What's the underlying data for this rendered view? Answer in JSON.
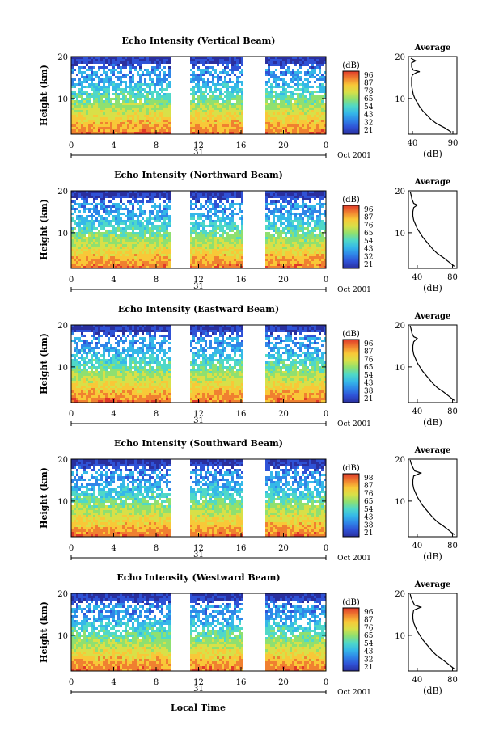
{
  "figure": {
    "bottom_label": "Local Time"
  },
  "colorbar": {
    "unit": "(dB)",
    "colors": [
      "#2a2f9e",
      "#2f52d6",
      "#2f86e8",
      "#35b8e8",
      "#4fd8c8",
      "#8fe070",
      "#d8e048",
      "#f8c838",
      "#f08030",
      "#e03a2a"
    ]
  },
  "chart_data": [
    {
      "type": "heatmap",
      "title": "Echo Intensity (Vertical Beam)",
      "ylabel": "Height (km)",
      "y_ticks": [
        "20",
        "10"
      ],
      "ylim": [
        1.5,
        20
      ],
      "x_ticks": [
        "0",
        "4",
        "8",
        "12",
        "16",
        "20",
        "0"
      ],
      "xlim": [
        0,
        24
      ],
      "date_label": "31",
      "month_year": "Oct 2001",
      "colorbar_ticks": [
        "96",
        "87",
        "78",
        "65",
        "54",
        "43",
        "32",
        "21"
      ],
      "data_gaps": [
        [
          9.3,
          11.2
        ],
        [
          16.2,
          18.2
        ]
      ],
      "profile": {
        "title": "Average",
        "xlabel": "(dB)",
        "x_ticks": [
          "40",
          "90"
        ],
        "xlim": [
          35,
          95
        ],
        "y_ticks": [
          "20",
          "10"
        ],
        "ylim": [
          1.5,
          20
        ],
        "points": [
          [
            88,
            2
          ],
          [
            80,
            3
          ],
          [
            70,
            4
          ],
          [
            63,
            5
          ],
          [
            58,
            6
          ],
          [
            53,
            7
          ],
          [
            49,
            8
          ],
          [
            46,
            9
          ],
          [
            43,
            10
          ],
          [
            41,
            11
          ],
          [
            40,
            12
          ],
          [
            39,
            13
          ],
          [
            39,
            14
          ],
          [
            39,
            15
          ],
          [
            40,
            15.6
          ],
          [
            45,
            16.2
          ],
          [
            49,
            16.4
          ],
          [
            41,
            16.8
          ],
          [
            39,
            17.5
          ],
          [
            39,
            18.5
          ],
          [
            44,
            19
          ],
          [
            38,
            19.6
          ]
        ]
      }
    },
    {
      "type": "heatmap",
      "title": "Echo Intensity (Northward Beam)",
      "ylabel": "Height (km)",
      "y_ticks": [
        "20",
        "10"
      ],
      "ylim": [
        1.5,
        20
      ],
      "x_ticks": [
        "0",
        "4",
        "8",
        "12",
        "16",
        "20",
        "0"
      ],
      "xlim": [
        0,
        24
      ],
      "date_label": "31",
      "month_year": "Oct 2001",
      "colorbar_ticks": [
        "96",
        "87",
        "76",
        "65",
        "54",
        "43",
        "32",
        "21"
      ],
      "data_gaps": [
        [
          9.3,
          11.2
        ],
        [
          16.2,
          18.2
        ]
      ],
      "profile": {
        "title": "Average",
        "xlabel": "(dB)",
        "x_ticks": [
          "40",
          "80"
        ],
        "xlim": [
          30,
          85
        ],
        "y_ticks": [
          "20",
          "10"
        ],
        "ylim": [
          1.5,
          20
        ],
        "points": [
          [
            82,
            2
          ],
          [
            76,
            3
          ],
          [
            70,
            4
          ],
          [
            63,
            5
          ],
          [
            58,
            6
          ],
          [
            54,
            7
          ],
          [
            50,
            8
          ],
          [
            46,
            9
          ],
          [
            43,
            10
          ],
          [
            40,
            11
          ],
          [
            38,
            12
          ],
          [
            36,
            13
          ],
          [
            35,
            14
          ],
          [
            35,
            15
          ],
          [
            36,
            16
          ],
          [
            40,
            16.6
          ],
          [
            36,
            17
          ],
          [
            34,
            18
          ],
          [
            33,
            19
          ],
          [
            32,
            19.8
          ]
        ]
      }
    },
    {
      "type": "heatmap",
      "title": "Echo Intensity (Eastward Beam)",
      "ylabel": "Height (km)",
      "y_ticks": [
        "20",
        "10"
      ],
      "ylim": [
        1.5,
        20
      ],
      "x_ticks": [
        "0",
        "4",
        "8",
        "12",
        "16",
        "20",
        "0"
      ],
      "xlim": [
        0,
        24
      ],
      "date_label": "31",
      "month_year": "Oct 2001",
      "colorbar_ticks": [
        "96",
        "87",
        "76",
        "65",
        "54",
        "43",
        "38",
        "21"
      ],
      "data_gaps": [
        [
          9.3,
          11.2
        ],
        [
          16.2,
          18.2
        ]
      ],
      "profile": {
        "title": "Average",
        "xlabel": "(dB)",
        "x_ticks": [
          "40",
          "80"
        ],
        "xlim": [
          30,
          85
        ],
        "y_ticks": [
          "20",
          "10"
        ],
        "ylim": [
          1.5,
          20
        ],
        "points": [
          [
            82,
            2
          ],
          [
            76,
            3
          ],
          [
            70,
            4
          ],
          [
            63,
            5
          ],
          [
            58,
            6
          ],
          [
            54,
            7
          ],
          [
            50,
            8
          ],
          [
            46,
            9
          ],
          [
            43,
            10
          ],
          [
            40,
            11
          ],
          [
            38,
            12
          ],
          [
            36,
            13
          ],
          [
            35,
            14
          ],
          [
            35,
            15
          ],
          [
            36,
            16
          ],
          [
            40,
            16.8
          ],
          [
            36,
            17.2
          ],
          [
            34,
            18
          ],
          [
            33,
            19
          ],
          [
            32,
            19.8
          ]
        ]
      }
    },
    {
      "type": "heatmap",
      "title": "Echo Intensity (Southward Beam)",
      "ylabel": "Height (km)",
      "y_ticks": [
        "20",
        "10"
      ],
      "ylim": [
        1.5,
        20
      ],
      "x_ticks": [
        "0",
        "4",
        "8",
        "12",
        "16",
        "20",
        "0"
      ],
      "xlim": [
        0,
        24
      ],
      "date_label": "31",
      "month_year": "Oct 2001",
      "colorbar_ticks": [
        "98",
        "87",
        "76",
        "65",
        "54",
        "43",
        "38",
        "21"
      ],
      "data_gaps": [
        [
          9.3,
          11.2
        ],
        [
          16.2,
          18.2
        ]
      ],
      "profile": {
        "title": "Average",
        "xlabel": "(dB)",
        "x_ticks": [
          "40",
          "80"
        ],
        "xlim": [
          30,
          85
        ],
        "y_ticks": [
          "20",
          "10"
        ],
        "ylim": [
          1.5,
          20
        ],
        "points": [
          [
            82,
            2
          ],
          [
            76,
            3
          ],
          [
            70,
            4
          ],
          [
            63,
            5
          ],
          [
            58,
            6
          ],
          [
            54,
            7
          ],
          [
            50,
            8
          ],
          [
            46,
            9
          ],
          [
            43,
            10
          ],
          [
            40,
            11
          ],
          [
            38,
            12
          ],
          [
            36,
            13
          ],
          [
            35,
            14
          ],
          [
            35,
            15
          ],
          [
            36,
            16
          ],
          [
            44,
            16.7
          ],
          [
            37,
            17.2
          ],
          [
            35,
            18
          ],
          [
            33,
            19
          ],
          [
            32,
            19.8
          ]
        ]
      }
    },
    {
      "type": "heatmap",
      "title": "Echo Intensity (Westward Beam)",
      "ylabel": "Height (km)",
      "y_ticks": [
        "20",
        "10"
      ],
      "ylim": [
        1.5,
        20
      ],
      "x_ticks": [
        "0",
        "4",
        "8",
        "12",
        "16",
        "20",
        "0"
      ],
      "xlim": [
        0,
        24
      ],
      "date_label": "31",
      "month_year": "Oct 2001",
      "colorbar_ticks": [
        "96",
        "87",
        "76",
        "65",
        "54",
        "43",
        "32",
        "21"
      ],
      "data_gaps": [
        [
          9.3,
          11.2
        ],
        [
          16.2,
          18.2
        ]
      ],
      "profile": {
        "title": "Average",
        "xlabel": "(dB)",
        "x_ticks": [
          "40",
          "80"
        ],
        "xlim": [
          30,
          85
        ],
        "y_ticks": [
          "20",
          "10"
        ],
        "ylim": [
          1.5,
          20
        ],
        "points": [
          [
            82,
            2
          ],
          [
            76,
            3
          ],
          [
            70,
            4
          ],
          [
            63,
            5
          ],
          [
            58,
            6
          ],
          [
            54,
            7
          ],
          [
            50,
            8
          ],
          [
            46,
            9
          ],
          [
            43,
            10
          ],
          [
            40,
            11
          ],
          [
            38,
            12
          ],
          [
            36,
            13
          ],
          [
            35,
            14
          ],
          [
            35,
            15
          ],
          [
            36,
            16
          ],
          [
            44,
            16.7
          ],
          [
            37,
            17.2
          ],
          [
            35,
            18
          ],
          [
            33,
            19
          ],
          [
            32,
            19.8
          ]
        ]
      }
    }
  ]
}
